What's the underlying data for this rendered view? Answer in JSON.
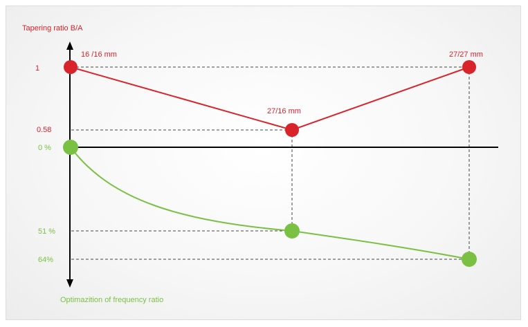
{
  "colors": {
    "tapering": "#d9232a",
    "frequency": "#7ac143",
    "axis": "#000000",
    "guide": "#444444"
  },
  "axes": {
    "top_label": "Tapering ratio  B/A",
    "bottom_label": "Optimazition of frequency ratio"
  },
  "tapering": {
    "ticks": [
      "1",
      "0.58"
    ],
    "points": [
      {
        "label": "16 /16 mm",
        "ratio": 1
      },
      {
        "label": "27/16 mm",
        "ratio": 0.58
      },
      {
        "label": "27/27 mm",
        "ratio": 1
      }
    ]
  },
  "frequency": {
    "ticks": [
      "0 %",
      "51 %",
      "64%"
    ],
    "points": [
      {
        "percent": 0
      },
      {
        "percent": 51
      },
      {
        "percent": 64
      }
    ]
  }
}
